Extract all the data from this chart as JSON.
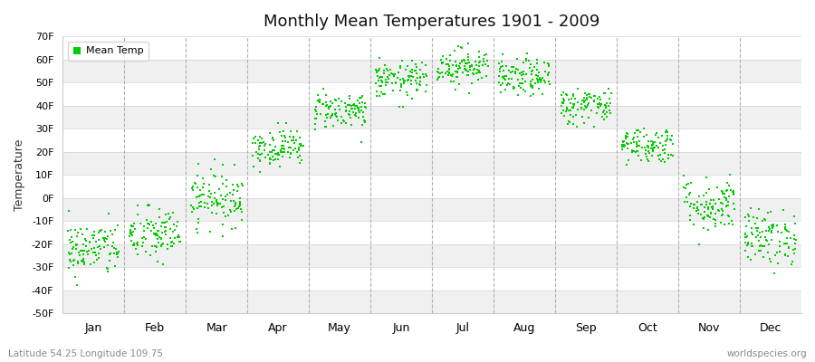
{
  "title": "Monthly Mean Temperatures 1901 - 2009",
  "ylabel": "Temperature",
  "xlabel_bottom_left": "Latitude 54.25 Longitude 109.75",
  "xlabel_bottom_right": "worldspecies.org",
  "ylim": [
    -50,
    70
  ],
  "yticks": [
    -50,
    -40,
    -30,
    -20,
    -10,
    0,
    10,
    20,
    30,
    40,
    50,
    60,
    70
  ],
  "ytick_labels": [
    "-50F",
    "-40F",
    "-30F",
    "-20F",
    "-10F",
    "0F",
    "10F",
    "20F",
    "30F",
    "40F",
    "50F",
    "60F",
    "70F"
  ],
  "month_names": [
    "Jan",
    "Feb",
    "Mar",
    "Apr",
    "May",
    "Jun",
    "Jul",
    "Aug",
    "Sep",
    "Oct",
    "Nov",
    "Dec"
  ],
  "dot_color": "#00CC00",
  "background_color": "#ffffff",
  "band_color_light": "#f0f0f0",
  "band_color_dark": "#e0e0e0",
  "legend_label": "Mean Temp",
  "marker_size": 3,
  "n_years": 109,
  "monthly_means": [
    -22,
    -16,
    0,
    22,
    38,
    51,
    57,
    52,
    40,
    23,
    -3,
    -17
  ],
  "monthly_stds": [
    6,
    6,
    6,
    4,
    4,
    4,
    4,
    4,
    4,
    4,
    6,
    6
  ],
  "dashed_line_color": "#aaaaaa",
  "grid_line_color": "#cccccc"
}
